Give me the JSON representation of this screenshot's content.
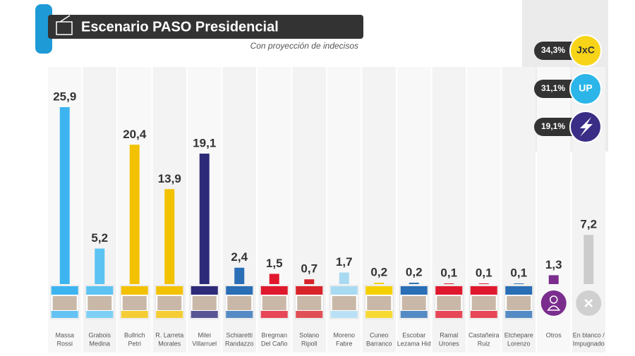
{
  "chart_data": {
    "type": "bar",
    "title": "Escenario PASO Presidencial",
    "subtitle": "Con proyección de indecisos",
    "categories": [
      [
        "Massa",
        "Rossi"
      ],
      [
        "Grabois",
        "Medina"
      ],
      [
        "Bullrich",
        "Petri"
      ],
      [
        "R. Larreta",
        "Morales"
      ],
      [
        "Milei",
        "Villarruel"
      ],
      [
        "Schiaretti",
        "Randazzo"
      ],
      [
        "Bregman",
        "Del Caño"
      ],
      [
        "Solano",
        "Ripoll"
      ],
      [
        "Moreno",
        "Fabre"
      ],
      [
        "Cuneo",
        "Barranco"
      ],
      [
        "Escobar",
        "Lezama Hid"
      ],
      [
        "Ramal",
        "Urones"
      ],
      [
        "Castañeira",
        "Ruiz"
      ],
      [
        "Etchepare",
        "Lorenzo"
      ],
      [
        "Otros"
      ],
      [
        "En blanco /",
        "Impugnado"
      ]
    ],
    "values": [
      25.9,
      5.2,
      20.4,
      13.9,
      19.1,
      2.4,
      1.5,
      0.7,
      1.7,
      0.2,
      0.2,
      0.1,
      0.1,
      0.1,
      1.3,
      7.2
    ],
    "value_labels": [
      "25,9",
      "5,2",
      "20,4",
      "13,9",
      "19,1",
      "2,4",
      "1,5",
      "0,7",
      "1,7",
      "0,2",
      "0,2",
      "0,1",
      "0,1",
      "0,1",
      "1,3",
      "7,2"
    ],
    "colors": [
      "#3db4f0",
      "#5cc3f2",
      "#f2c100",
      "#f2c100",
      "#2e2a7a",
      "#2a6eb5",
      "#e0182d",
      "#d8232a",
      "#a8daf2",
      "#f5d000",
      "#2a6eb5",
      "#e0182d",
      "#e0182d",
      "#2a6eb5",
      "#7b2d8e",
      "#cccccc"
    ],
    "coalitions": [
      {
        "share": "34,3%",
        "logo": "JxC",
        "color": "#f7d417"
      },
      {
        "share": "31,1%",
        "logo": "UP",
        "color": "#2bb5e8"
      },
      {
        "share": "19,1%",
        "color": "#3a2d86"
      }
    ]
  }
}
